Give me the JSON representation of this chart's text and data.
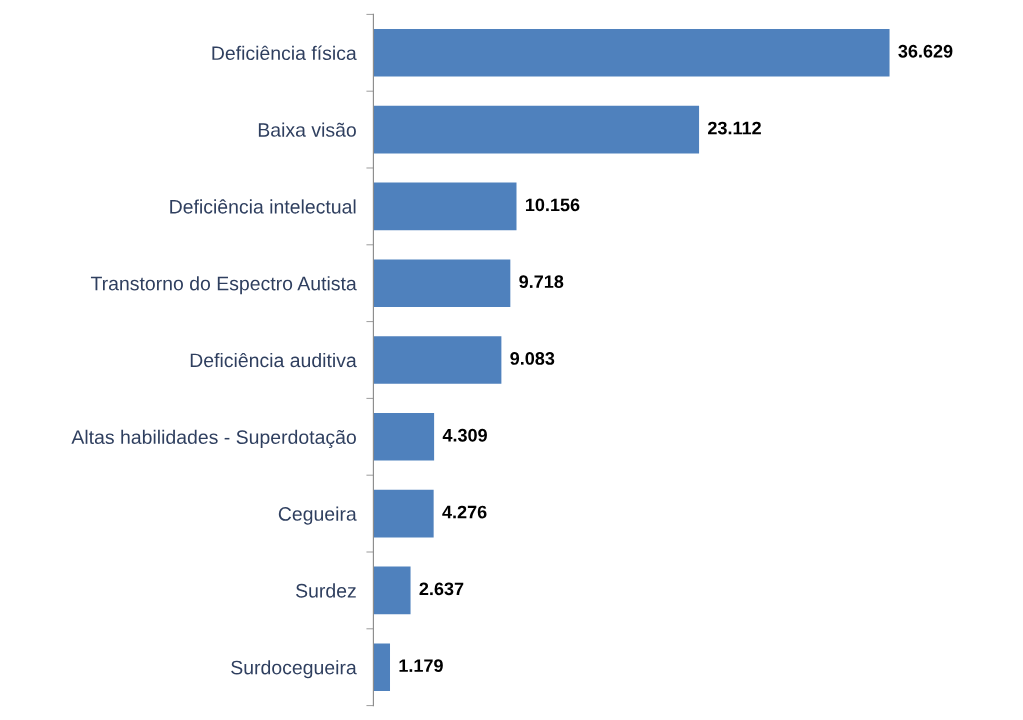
{
  "chart_data": {
    "type": "bar",
    "orientation": "horizontal",
    "categories": [
      "Deficiência física",
      "Baixa visão",
      "Deficiência intelectual",
      "Transtorno do Espectro Autista",
      "Deficiência auditiva",
      "Altas habilidades - Superdotação",
      "Cegueira",
      "Surdez",
      "Surdocegueira"
    ],
    "values": [
      36629,
      23112,
      10156,
      9718,
      9083,
      4309,
      4276,
      2637,
      1179
    ],
    "value_labels": [
      "36.629",
      "23.112",
      "10.156",
      "9.718",
      "9.083",
      "4.309",
      "4.276",
      "2.637",
      "1.179"
    ],
    "color": "#4f81bd",
    "grid": false,
    "legend": false
  }
}
